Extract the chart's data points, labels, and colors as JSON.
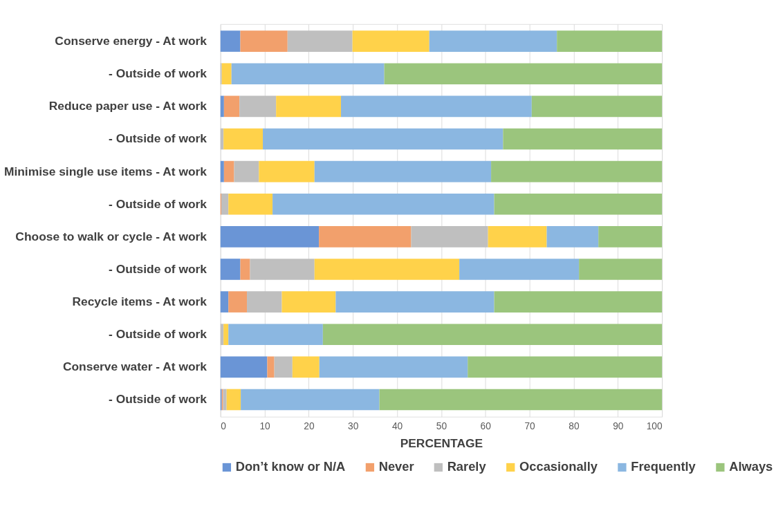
{
  "chart_data": {
    "type": "bar",
    "orientation": "horizontal",
    "stacked": true,
    "xlabel": "PERCENTAGE",
    "categories": [
      "Conserve energy - At work",
      "- Outside of work",
      "Reduce paper use - At work",
      "- Outside of work",
      "Minimise single use items - At work",
      "- Outside of work",
      "Choose to walk or cycle - At work",
      "- Outside of work",
      "Recycle items - At work",
      "- Outside of work",
      "Conserve water - At work",
      "- Outside of work"
    ],
    "series": [
      {
        "name": "Don’t know or N/A",
        "color": "#6a95d6",
        "values": [
          4.5,
          0,
          0.8,
          0,
          0.8,
          0,
          22.3,
          4.5,
          1.8,
          0,
          10.6,
          0.3
        ]
      },
      {
        "name": "Never",
        "color": "#f2a06c",
        "values": [
          10.7,
          0,
          3.5,
          0,
          2.3,
          0.2,
          20.9,
          2.2,
          4.2,
          0,
          1.6,
          0.3
        ]
      },
      {
        "name": "Rarely",
        "color": "#bfbfbf",
        "values": [
          14.7,
          0.3,
          8.3,
          0.7,
          5.6,
          1.6,
          17.4,
          14.6,
          7.9,
          0.7,
          4.1,
          0.8
        ]
      },
      {
        "name": "Occasionally",
        "color": "#ffd24a",
        "values": [
          17.4,
          2.2,
          14.7,
          8.9,
          12.6,
          10,
          13.3,
          32.8,
          12.2,
          1.1,
          6.1,
          3.2
        ]
      },
      {
        "name": "Frequently",
        "color": "#8bb7e1",
        "values": [
          28.9,
          34.6,
          43.2,
          54.4,
          40,
          50.2,
          11.7,
          27.1,
          35.9,
          21.4,
          33.6,
          31.4
        ]
      },
      {
        "name": "Always",
        "color": "#9bc57d",
        "values": [
          23.8,
          62.9,
          29.5,
          36,
          38.7,
          38,
          14.4,
          18.8,
          38,
          76.8,
          44,
          64
        ]
      }
    ],
    "xlim": [
      0,
      100
    ],
    "xticks": [
      0,
      10,
      20,
      30,
      40,
      50,
      60,
      70,
      80,
      90,
      100
    ],
    "grid": "x",
    "legend": "bottom"
  }
}
